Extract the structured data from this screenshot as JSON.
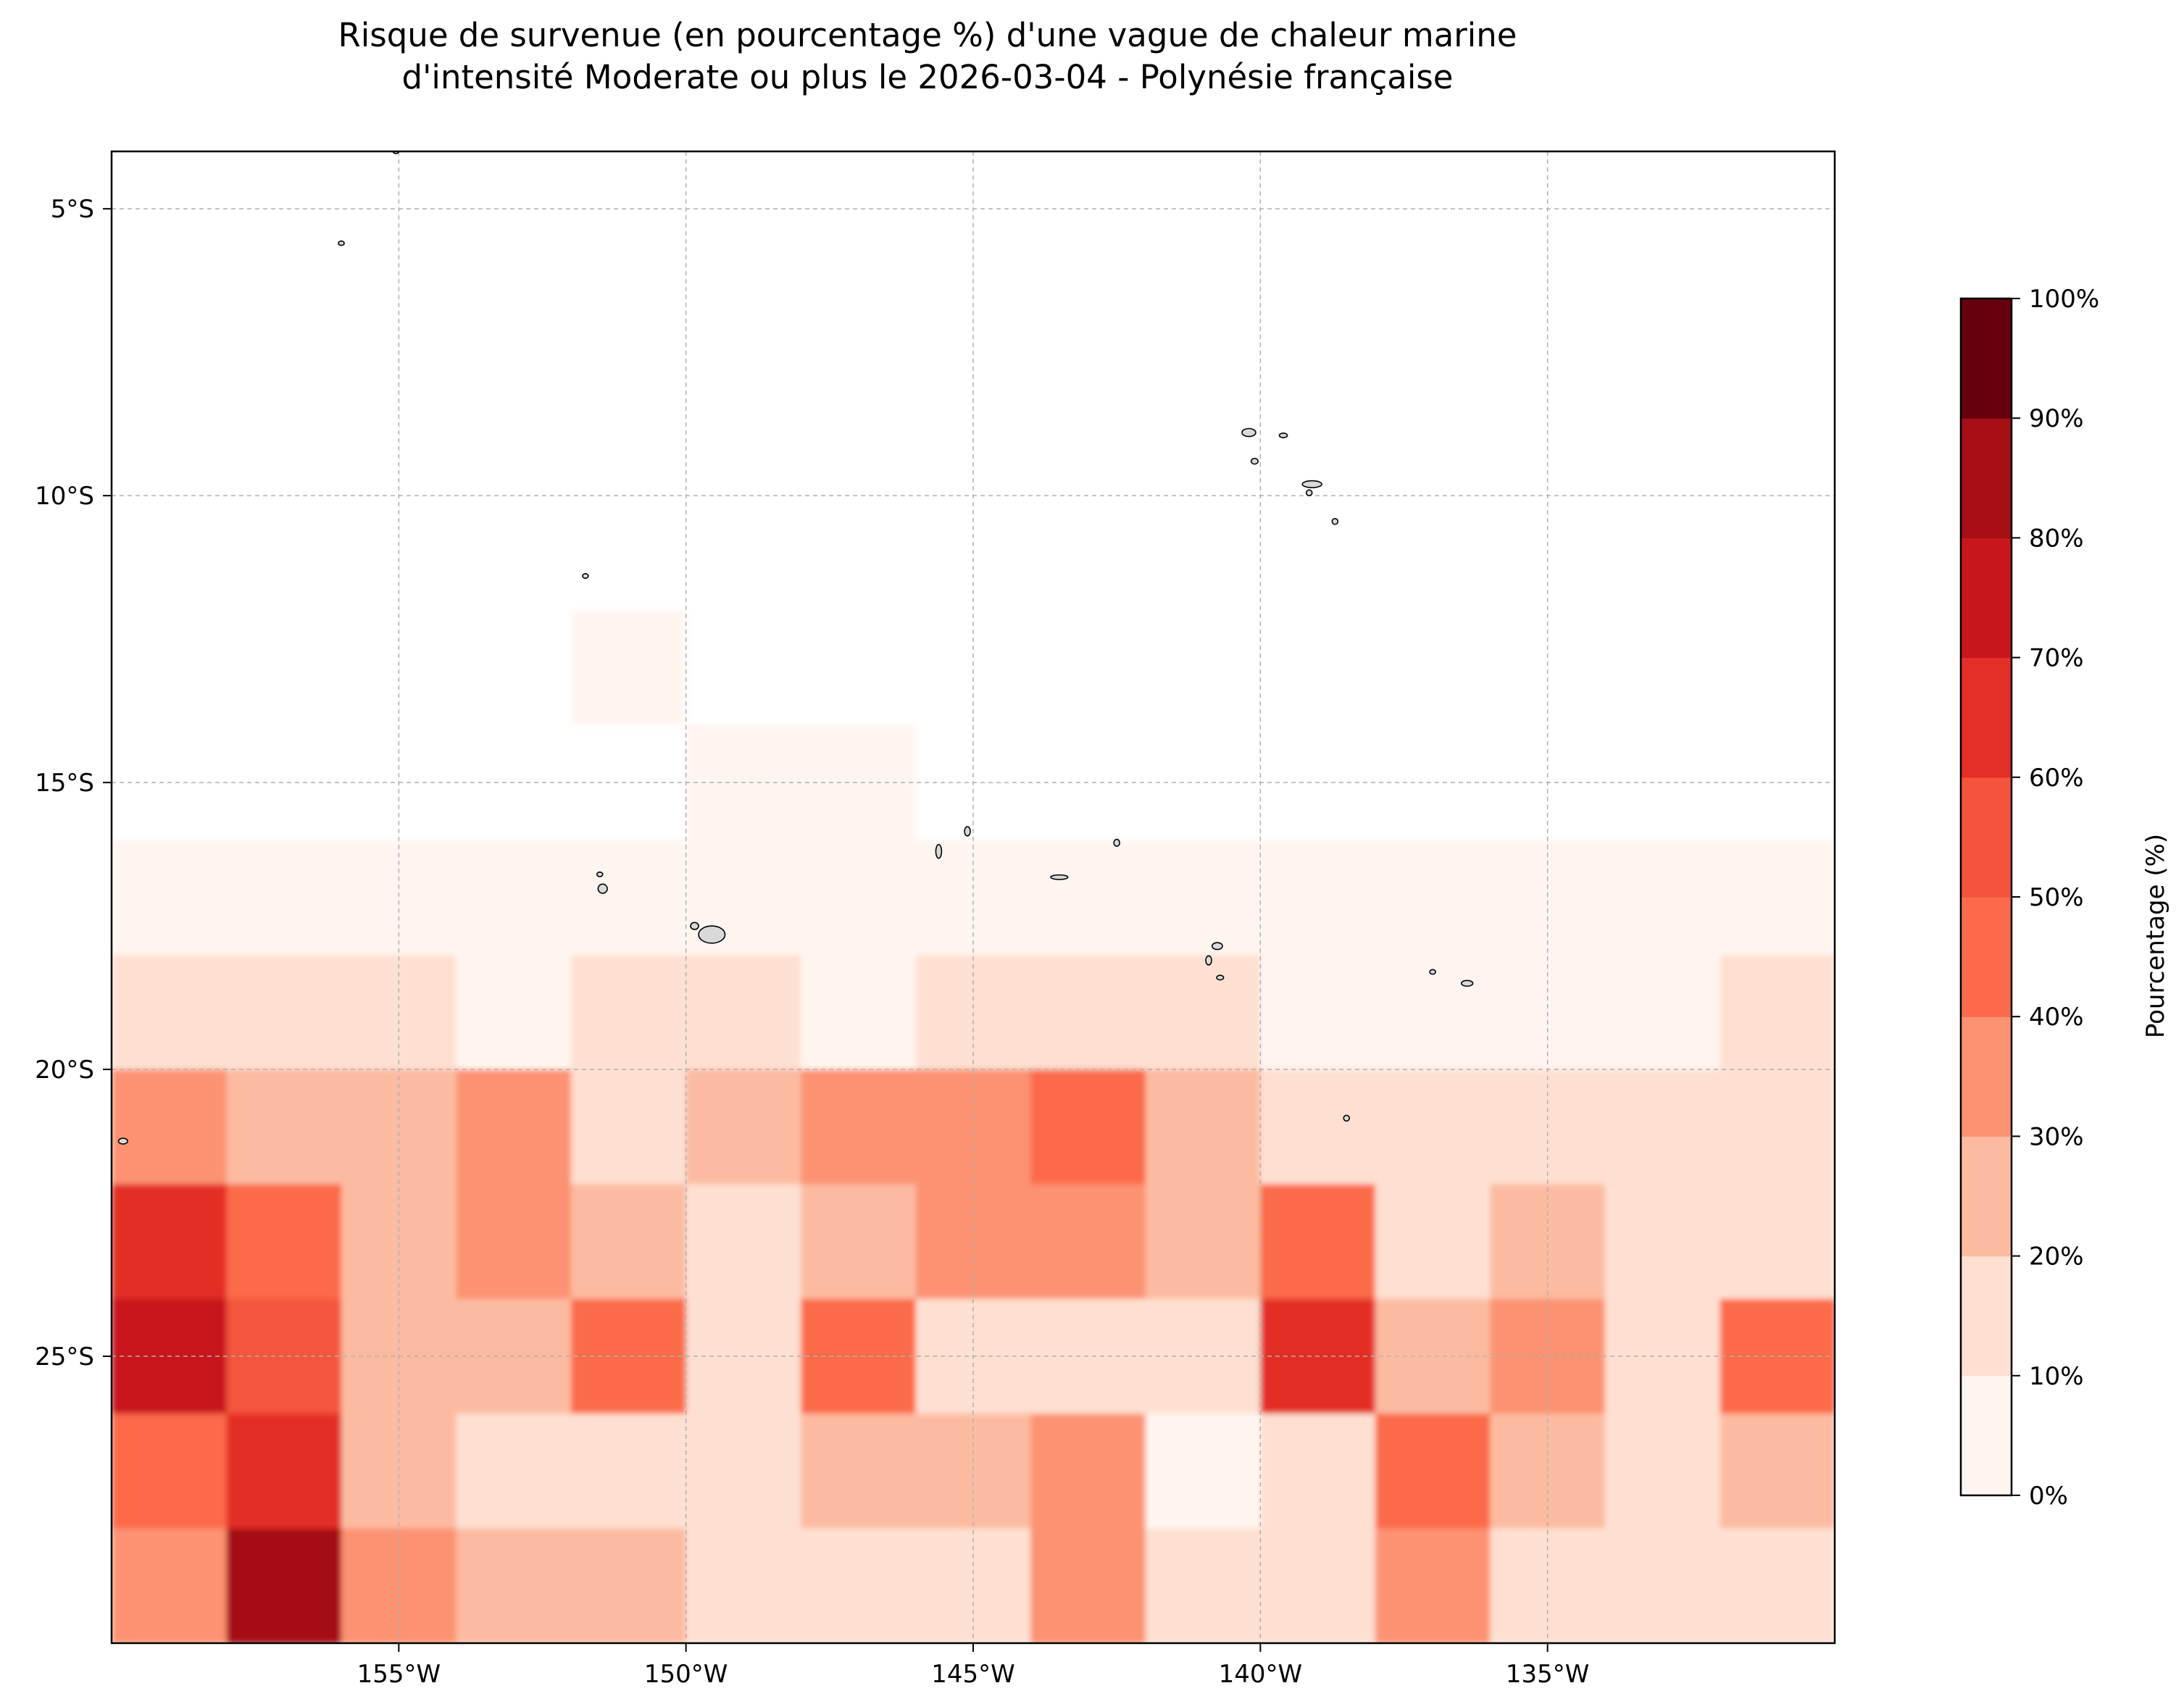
{
  "title": {
    "line1": "Risque de survenue (en pourcentage %) d'une vague de chaleur marine",
    "line2": "d'intensité Moderate ou plus le 2026-03-04 - Polynésie française"
  },
  "map": {
    "region": "Polynésie française",
    "lon_range": [
      -160,
      -130
    ],
    "lat_range": [
      -30,
      -4
    ],
    "x_ticks": [
      {
        "value": -155,
        "label": "155°W"
      },
      {
        "value": -150,
        "label": "150°W"
      },
      {
        "value": -145,
        "label": "145°W"
      },
      {
        "value": -140,
        "label": "140°W"
      },
      {
        "value": -135,
        "label": "135°W"
      }
    ],
    "y_ticks": [
      {
        "value": -5,
        "label": "5°S"
      },
      {
        "value": -10,
        "label": "10°S"
      },
      {
        "value": -15,
        "label": "15°S"
      },
      {
        "value": -20,
        "label": "20°S"
      },
      {
        "value": -25,
        "label": "25°S"
      }
    ],
    "grid": true,
    "land_color": "#d9d9d9",
    "islands": [
      {
        "lon": -140.2,
        "lat": -8.9,
        "rx": 0.12,
        "ry": 0.07
      },
      {
        "lon": -139.6,
        "lat": -8.95,
        "rx": 0.07,
        "ry": 0.04
      },
      {
        "lon": -140.1,
        "lat": -9.4,
        "rx": 0.06,
        "ry": 0.05
      },
      {
        "lon": -139.1,
        "lat": -9.8,
        "rx": 0.17,
        "ry": 0.06
      },
      {
        "lon": -139.15,
        "lat": -9.95,
        "rx": 0.05,
        "ry": 0.05
      },
      {
        "lon": -138.7,
        "lat": -10.45,
        "rx": 0.04,
        "ry": 0.05
      },
      {
        "lon": -151.75,
        "lat": -11.4,
        "rx": 0.03,
        "ry": 0.04
      },
      {
        "lon": -156.0,
        "lat": -5.6,
        "rx": 0.04,
        "ry": 0.03
      },
      {
        "lon": -155.05,
        "lat": -4.0,
        "rx": 0.04,
        "ry": 0.03
      },
      {
        "lon": -149.55,
        "lat": -17.65,
        "rx": 0.23,
        "ry": 0.15
      },
      {
        "lon": -149.85,
        "lat": -17.5,
        "rx": 0.07,
        "ry": 0.06
      },
      {
        "lon": -151.45,
        "lat": -16.85,
        "rx": 0.08,
        "ry": 0.08
      },
      {
        "lon": -151.5,
        "lat": -16.6,
        "rx": 0.04,
        "ry": 0.04
      },
      {
        "lon": -145.6,
        "lat": -16.2,
        "rx": 0.05,
        "ry": 0.12
      },
      {
        "lon": -145.1,
        "lat": -15.85,
        "rx": 0.05,
        "ry": 0.08
      },
      {
        "lon": -143.5,
        "lat": -16.65,
        "rx": 0.15,
        "ry": 0.04
      },
      {
        "lon": -142.5,
        "lat": -16.05,
        "rx": 0.03,
        "ry": 0.06
      },
      {
        "lon": -140.75,
        "lat": -17.85,
        "rx": 0.09,
        "ry": 0.06
      },
      {
        "lon": -140.9,
        "lat": -18.1,
        "rx": 0.05,
        "ry": 0.08
      },
      {
        "lon": -140.7,
        "lat": -18.4,
        "rx": 0.06,
        "ry": 0.04
      },
      {
        "lon": -137.0,
        "lat": -18.3,
        "rx": 0.05,
        "ry": 0.04
      },
      {
        "lon": -136.4,
        "lat": -18.5,
        "rx": 0.1,
        "ry": 0.05
      },
      {
        "lon": -138.5,
        "lat": -20.85,
        "rx": 0.04,
        "ry": 0.05
      },
      {
        "lon": -159.8,
        "lat": -21.25,
        "rx": 0.08,
        "ry": 0.05
      }
    ]
  },
  "colorbar": {
    "label": "Pourcentage (%)",
    "ticks": [
      "0%",
      "10%",
      "20%",
      "30%",
      "40%",
      "50%",
      "60%",
      "70%",
      "80%",
      "90%",
      "100%"
    ],
    "colors": [
      "#fff5f0",
      "#fee0d2",
      "#fcbba1",
      "#fc9272",
      "#fb6a4a",
      "#f4543c",
      "#e32f27",
      "#c8171c",
      "#a50f15",
      "#67000d"
    ]
  },
  "chart_data": {
    "type": "heatmap",
    "title": "Risque de survenue (en pourcentage %) d'une vague de chaleur marine d'intensité Moderate ou plus le 2026-03-04 - Polynésie française",
    "xlabel": "",
    "ylabel": "",
    "xlim": [
      -160,
      -130
    ],
    "ylim": [
      -30,
      -4
    ],
    "value_unit": "%",
    "zlim": [
      0,
      100
    ],
    "levels": [
      0,
      10,
      20,
      30,
      40,
      50,
      60,
      70,
      80,
      90,
      100
    ],
    "grid_lon": [
      -159,
      -157,
      -155,
      -153,
      -151,
      -149,
      -147,
      -145,
      -143,
      -141,
      -139,
      -137,
      -135,
      -133,
      -131
    ],
    "grid_lat": [
      -5,
      -7,
      -9,
      -11,
      -13,
      -15,
      -17,
      -19,
      -21,
      -23,
      -25,
      -27,
      -29
    ],
    "values": [
      [
        0,
        0,
        0,
        0,
        0,
        0,
        0,
        0,
        0,
        0,
        0,
        0,
        0,
        0,
        0
      ],
      [
        0,
        0,
        0,
        0,
        0,
        0,
        0,
        0,
        0,
        0,
        0,
        0,
        0,
        0,
        0
      ],
      [
        0,
        0,
        0,
        0,
        0,
        0,
        0,
        0,
        0,
        0,
        0,
        0,
        0,
        0,
        0
      ],
      [
        0,
        0,
        0,
        0,
        0,
        0,
        0,
        0,
        0,
        0,
        0,
        0,
        0,
        0,
        0
      ],
      [
        0,
        0,
        0,
        0,
        5,
        0,
        0,
        0,
        0,
        0,
        0,
        0,
        0,
        0,
        0
      ],
      [
        0,
        0,
        0,
        0,
        0,
        5,
        5,
        0,
        0,
        0,
        0,
        0,
        0,
        0,
        0
      ],
      [
        8,
        8,
        5,
        5,
        5,
        5,
        5,
        8,
        8,
        5,
        5,
        5,
        8,
        8,
        5
      ],
      [
        15,
        12,
        12,
        8,
        10,
        10,
        8,
        12,
        15,
        10,
        8,
        8,
        8,
        8,
        10
      ],
      [
        35,
        25,
        25,
        30,
        15,
        25,
        35,
        35,
        40,
        20,
        15,
        15,
        15,
        15,
        15
      ],
      [
        65,
        45,
        25,
        35,
        25,
        15,
        25,
        35,
        35,
        25,
        40,
        15,
        25,
        15,
        15
      ],
      [
        75,
        55,
        25,
        25,
        45,
        15,
        40,
        15,
        15,
        15,
        65,
        20,
        35,
        15,
        40
      ],
      [
        45,
        65,
        25,
        15,
        15,
        15,
        20,
        25,
        35,
        5,
        15,
        40,
        20,
        15,
        20
      ],
      [
        35,
        85,
        35,
        25,
        20,
        10,
        15,
        10,
        30,
        15,
        10,
        30,
        15,
        15,
        15
      ]
    ]
  }
}
